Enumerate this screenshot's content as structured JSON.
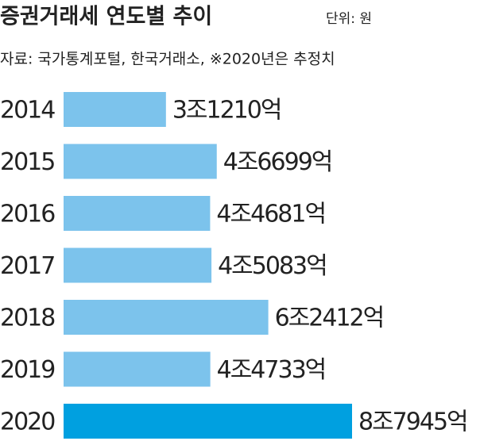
{
  "chart_data": {
    "type": "bar",
    "orientation": "horizontal",
    "title": "증권거래세 연도별 추이",
    "unit": "단위: 원",
    "subtitle": "자료: 국가통계포털, 한국거래소, ※2020년은 추정치",
    "categories": [
      "2014",
      "2015",
      "2016",
      "2017",
      "2018",
      "2019",
      "2020"
    ],
    "values": [
      31210,
      46699,
      44681,
      45083,
      62412,
      44733,
      87945
    ],
    "value_labels": [
      "3조1210억",
      "4조6699억",
      "4조4681억",
      "4조5083억",
      "6조2412억",
      "4조4733억",
      "8조7945억"
    ],
    "colors": [
      "#7cc3ec",
      "#7cc3ec",
      "#7cc3ec",
      "#7cc3ec",
      "#7cc3ec",
      "#7cc3ec",
      "#00a0e0"
    ]
  }
}
